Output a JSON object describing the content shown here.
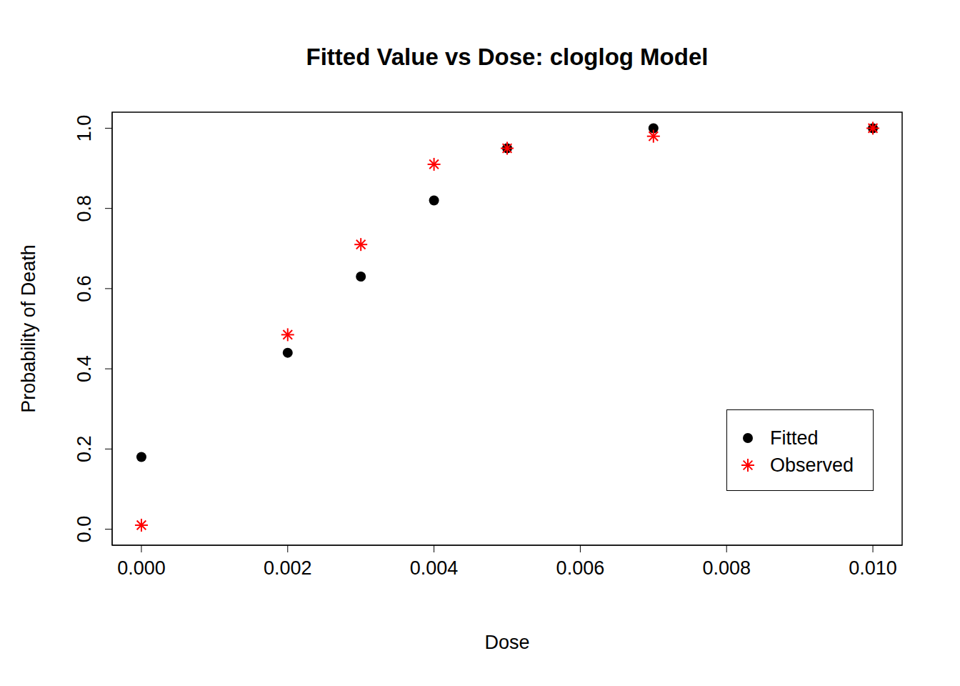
{
  "chart_data": {
    "type": "scatter",
    "title": "Fitted Value vs Dose: cloglog Model",
    "x_label": "Dose",
    "y_label": "Probability of Death",
    "x": [
      0,
      0.002,
      0.003,
      0.004,
      0.005,
      0.007,
      0.01
    ],
    "series": [
      {
        "name": "Fitted",
        "color": "#000000",
        "marker": "circle",
        "values": [
          0.18,
          0.44,
          0.63,
          0.82,
          0.95,
          1.0,
          1.0
        ]
      },
      {
        "name": "Observed",
        "color": "#ff0000",
        "marker": "asterisk",
        "values": [
          0.01,
          0.485,
          0.71,
          0.91,
          0.95,
          0.98,
          1.0
        ]
      }
    ],
    "xlim": [
      -0.0004,
      0.0104
    ],
    "ylim": [
      -0.04,
      1.04
    ],
    "xticks": [
      {
        "value": 0,
        "label": "0.000"
      },
      {
        "value": 0.002,
        "label": "0.002"
      },
      {
        "value": 0.004,
        "label": "0.004"
      },
      {
        "value": 0.006,
        "label": "0.006"
      },
      {
        "value": 0.008,
        "label": "0.008"
      },
      {
        "value": 0.01,
        "label": "0.010"
      }
    ],
    "yticks": [
      {
        "value": 0,
        "label": "0.0"
      },
      {
        "value": 0.2,
        "label": "0.2"
      },
      {
        "value": 0.4,
        "label": "0.4"
      },
      {
        "value": 0.6,
        "label": "0.6"
      },
      {
        "value": 0.8,
        "label": "0.8"
      },
      {
        "value": 1,
        "label": "1.0"
      }
    ],
    "legend": "bottomright",
    "grid": false
  }
}
